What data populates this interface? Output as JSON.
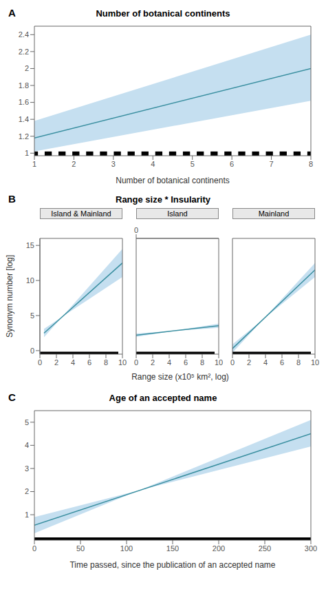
{
  "chart_data": [
    {
      "type": "line",
      "title": "Number of botanical continents",
      "annotations": [
        "A"
      ],
      "xlabel": "Number of botanical continents",
      "xlim": [
        1,
        8
      ],
      "ylim": [
        0.97,
        2.5
      ],
      "xticks": [
        1,
        2,
        3,
        4,
        5,
        6,
        7,
        8
      ],
      "yticks": [
        1,
        1.2,
        1.4,
        1.6,
        1.8,
        2,
        2.2,
        2.4
      ],
      "x": [
        1,
        8
      ],
      "values": [
        1.18,
        2.0
      ],
      "ci_upper": [
        1.38,
        2.4
      ],
      "ci_lower": [
        1.02,
        1.62
      ],
      "color": "#3a8fa0",
      "ci_color": "#c5dff0",
      "rug": {
        "x": [
          1.0,
          1.35,
          1.7,
          2.05,
          2.4,
          2.75,
          3.1,
          3.45,
          3.8,
          4.15,
          4.5,
          4.85,
          5.2,
          5.55,
          5.9,
          6.25,
          6.6,
          6.95,
          7.3,
          7.65,
          8.0
        ],
        "width": 0.18,
        "height": 0.05,
        "y": 0.97,
        "color": "#000000"
      }
    },
    {
      "type": "line",
      "title": "Range size * Insularity",
      "annotations": [
        "B"
      ],
      "xlabel": "Range size (x10⁵ km², log)",
      "ylabel": "Synonym number [log]",
      "ylim": [
        -0.5,
        16
      ],
      "yticks": [
        0,
        5,
        10,
        15
      ],
      "xticks": [
        0,
        2,
        4,
        6,
        8,
        10
      ],
      "x2ticks": [
        0,
        2,
        4,
        6,
        8,
        10
      ],
      "color": "#3a8fa0",
      "ci_color": "#c5dff0",
      "rug": {
        "y": -0.5,
        "height": 0.35,
        "color": "#000000"
      },
      "facets": [
        {
          "title": "Island & Mainland",
          "xlim": [
            0,
            10
          ],
          "x": [
            0.5,
            10
          ],
          "values": [
            2.5,
            12.5
          ],
          "ci_upper": [
            1.9,
            14.5
          ],
          "ci_lower": [
            3.1,
            10.5
          ],
          "rug": {
            "xmin": 0,
            "xmax": 9.5
          }
        },
        {
          "title": "Island",
          "xlim": [
            0,
            10
          ],
          "x": [
            0,
            10
          ],
          "values": [
            2.2,
            3.55
          ],
          "ci_upper": [
            1.95,
            3.85
          ],
          "ci_lower": [
            2.45,
            3.25
          ],
          "rug": {
            "xmin": 0,
            "xmax": 9.5
          }
        },
        {
          "title": "Mainland",
          "xlim": [
            0,
            10
          ],
          "x": [
            0,
            10
          ],
          "values": [
            0.3,
            11.5
          ],
          "ci_upper": [
            -0.3,
            12.5
          ],
          "ci_lower": [
            0.9,
            10.5
          ],
          "rug": {
            "xmin": 0,
            "xmax": 9.5
          }
        }
      ]
    },
    {
      "type": "line",
      "title": "Age of an accepted name",
      "annotations": [
        "C"
      ],
      "xlabel": "Time passed, since the publication of an accepted name",
      "xlim": [
        0,
        300
      ],
      "ylim": [
        -0.1,
        5.5
      ],
      "xticks": [
        0,
        50,
        100,
        150,
        200,
        250,
        300
      ],
      "yticks": [
        1,
        2,
        3,
        4,
        5
      ],
      "x": [
        0,
        300
      ],
      "values": [
        0.55,
        4.5
      ],
      "ci_upper": [
        0.2,
        5.1
      ],
      "ci_lower": [
        0.9,
        3.95
      ],
      "color": "#3a8fa0",
      "ci_color": "#c5dff0",
      "rug": {
        "xmin": 0,
        "xmax": 300,
        "y": -0.1,
        "height": 0.12,
        "color": "#000000"
      }
    }
  ]
}
